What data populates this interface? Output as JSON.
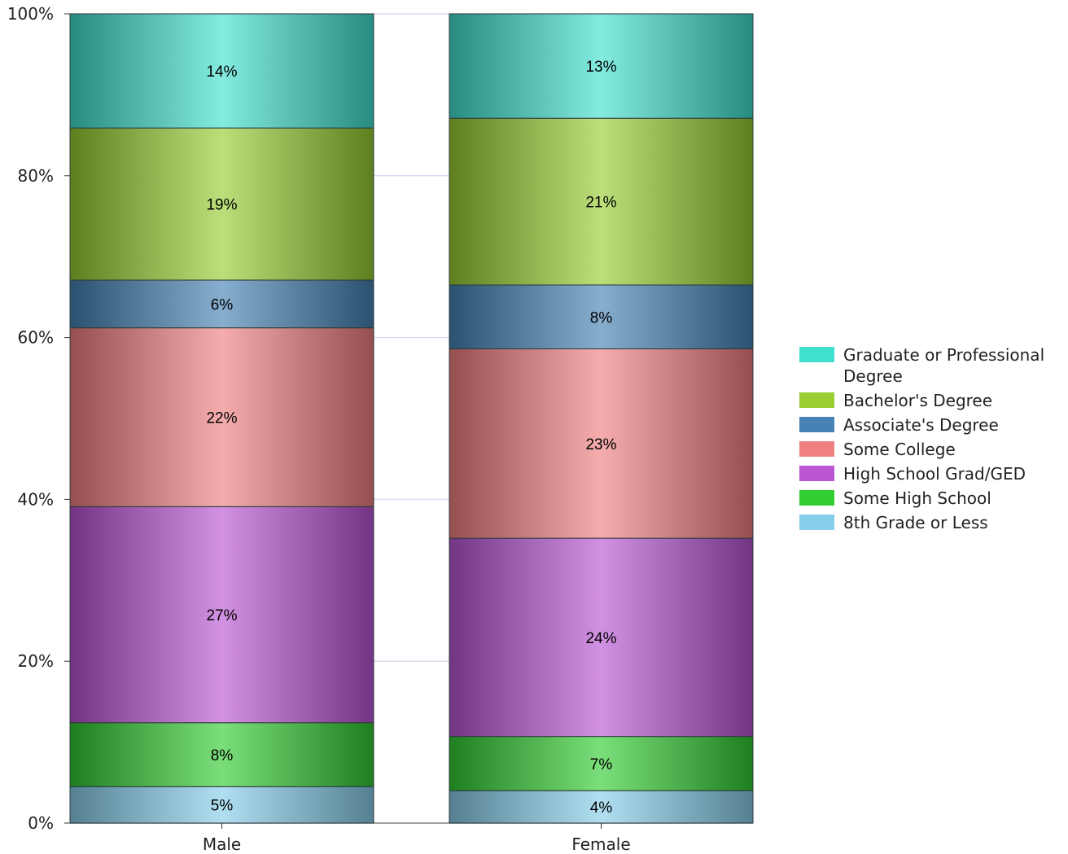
{
  "chart_data": {
    "type": "bar",
    "stacked": true,
    "normalized": true,
    "categories": [
      "Male",
      "Female"
    ],
    "ylim": [
      0,
      100
    ],
    "yticks": [
      "0%",
      "20%",
      "40%",
      "60%",
      "80%",
      "100%"
    ],
    "ytick_values": [
      0,
      20,
      40,
      60,
      80,
      100
    ],
    "grid": true,
    "legend_position": "right",
    "series": [
      {
        "name": "8th Grade or Less",
        "values": [
          4.5,
          4.0
        ],
        "labels": [
          "5%",
          "4%"
        ],
        "color": "#87CEEB"
      },
      {
        "name": "Some High School",
        "values": [
          7.9,
          6.7
        ],
        "labels": [
          "8%",
          "7%"
        ],
        "color": "#32CD32"
      },
      {
        "name": "High School Grad/GED",
        "values": [
          26.7,
          24.5
        ],
        "labels": [
          "27%",
          "24%"
        ],
        "color": "#BA55D3"
      },
      {
        "name": "Some College",
        "values": [
          22.1,
          23.4
        ],
        "labels": [
          "22%",
          "23%"
        ],
        "color": "#F08080"
      },
      {
        "name": "Associate's Degree",
        "values": [
          5.9,
          7.9
        ],
        "labels": [
          "6%",
          "8%"
        ],
        "color": "#4682B4"
      },
      {
        "name": "Bachelor's Degree",
        "values": [
          18.8,
          20.6
        ],
        "labels": [
          "19%",
          "21%"
        ],
        "color": "#9ACD32"
      },
      {
        "name": "Graduate or Professional Degree",
        "values": [
          14.1,
          12.9
        ],
        "labels": [
          "14%",
          "13%"
        ],
        "color": "#40E0D0"
      }
    ]
  }
}
